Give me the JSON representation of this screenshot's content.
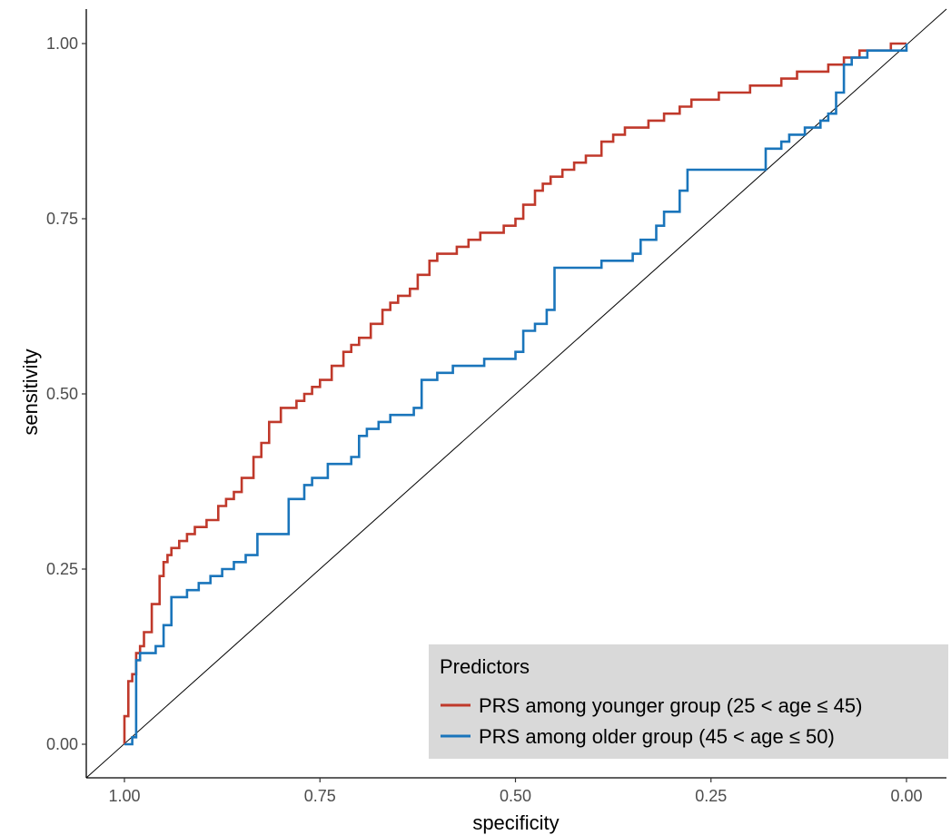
{
  "chart_data": {
    "type": "line",
    "title": "",
    "xlabel": "specificity",
    "ylabel": "sensitivity",
    "x_reversed": true,
    "xlim": [
      1.0,
      0.0
    ],
    "ylim": [
      0.0,
      1.0
    ],
    "x_ticks": [
      1.0,
      0.75,
      0.5,
      0.25,
      0.0
    ],
    "x_tick_labels": [
      "1.00",
      "0.75",
      "0.50",
      "0.25",
      "0.00"
    ],
    "y_ticks": [
      0.0,
      0.25,
      0.5,
      0.75,
      1.0
    ],
    "y_tick_labels": [
      "0.00",
      "0.25",
      "0.50",
      "0.75",
      "1.00"
    ],
    "grid": false,
    "reference_line": "diagonal",
    "legend": {
      "title": "Predictors",
      "position": "bottom-right",
      "background": "#d9d9d9"
    },
    "series": [
      {
        "name": "PRS among younger group (25 < age ≤ 45)",
        "color": "#c0392b",
        "x": [
          1.0,
          1.0,
          0.995,
          0.995,
          0.99,
          0.985,
          0.985,
          0.98,
          0.975,
          0.965,
          0.955,
          0.95,
          0.945,
          0.94,
          0.93,
          0.92,
          0.91,
          0.895,
          0.88,
          0.87,
          0.86,
          0.85,
          0.835,
          0.825,
          0.815,
          0.8,
          0.78,
          0.77,
          0.76,
          0.75,
          0.735,
          0.72,
          0.71,
          0.7,
          0.685,
          0.67,
          0.66,
          0.65,
          0.635,
          0.625,
          0.61,
          0.6,
          0.59,
          0.575,
          0.56,
          0.545,
          0.53,
          0.515,
          0.5,
          0.49,
          0.475,
          0.465,
          0.455,
          0.44,
          0.425,
          0.41,
          0.39,
          0.375,
          0.36,
          0.35,
          0.33,
          0.31,
          0.29,
          0.275,
          0.26,
          0.24,
          0.2,
          0.18,
          0.16,
          0.14,
          0.12,
          0.1,
          0.08,
          0.06,
          0.04,
          0.02,
          0.0
        ],
        "y": [
          0.0,
          0.04,
          0.07,
          0.09,
          0.1,
          0.12,
          0.13,
          0.14,
          0.16,
          0.2,
          0.24,
          0.26,
          0.27,
          0.28,
          0.29,
          0.3,
          0.31,
          0.32,
          0.34,
          0.35,
          0.36,
          0.38,
          0.41,
          0.43,
          0.46,
          0.48,
          0.49,
          0.5,
          0.51,
          0.52,
          0.54,
          0.56,
          0.57,
          0.58,
          0.6,
          0.62,
          0.63,
          0.64,
          0.65,
          0.67,
          0.69,
          0.7,
          0.7,
          0.71,
          0.72,
          0.73,
          0.73,
          0.74,
          0.75,
          0.77,
          0.79,
          0.8,
          0.81,
          0.82,
          0.83,
          0.84,
          0.86,
          0.87,
          0.88,
          0.88,
          0.89,
          0.9,
          0.91,
          0.92,
          0.92,
          0.93,
          0.94,
          0.94,
          0.95,
          0.96,
          0.96,
          0.97,
          0.98,
          0.99,
          0.99,
          1.0,
          1.0
        ]
      },
      {
        "name": "PRS among older group (45 < age ≤ 50)",
        "color": "#1a75bb",
        "x": [
          1.0,
          0.99,
          0.985,
          0.98,
          0.975,
          0.96,
          0.95,
          0.94,
          0.93,
          0.92,
          0.905,
          0.89,
          0.875,
          0.86,
          0.845,
          0.83,
          0.82,
          0.8,
          0.79,
          0.77,
          0.76,
          0.74,
          0.73,
          0.71,
          0.7,
          0.69,
          0.675,
          0.66,
          0.645,
          0.63,
          0.62,
          0.6,
          0.58,
          0.555,
          0.54,
          0.52,
          0.5,
          0.49,
          0.475,
          0.46,
          0.45,
          0.43,
          0.41,
          0.39,
          0.37,
          0.35,
          0.34,
          0.32,
          0.31,
          0.29,
          0.28,
          0.26,
          0.24,
          0.2,
          0.18,
          0.16,
          0.15,
          0.13,
          0.11,
          0.1,
          0.09,
          0.08,
          0.07,
          0.05,
          0.03,
          0.0
        ],
        "y": [
          0.0,
          0.01,
          0.12,
          0.13,
          0.13,
          0.14,
          0.17,
          0.21,
          0.21,
          0.22,
          0.23,
          0.24,
          0.25,
          0.26,
          0.27,
          0.3,
          0.3,
          0.3,
          0.35,
          0.37,
          0.38,
          0.4,
          0.4,
          0.41,
          0.44,
          0.45,
          0.46,
          0.47,
          0.47,
          0.48,
          0.52,
          0.53,
          0.54,
          0.54,
          0.55,
          0.55,
          0.56,
          0.59,
          0.6,
          0.62,
          0.68,
          0.68,
          0.68,
          0.69,
          0.69,
          0.7,
          0.72,
          0.74,
          0.76,
          0.79,
          0.82,
          0.82,
          0.82,
          0.82,
          0.85,
          0.86,
          0.87,
          0.88,
          0.89,
          0.9,
          0.93,
          0.97,
          0.98,
          0.99,
          0.99,
          1.0
        ]
      }
    ]
  }
}
